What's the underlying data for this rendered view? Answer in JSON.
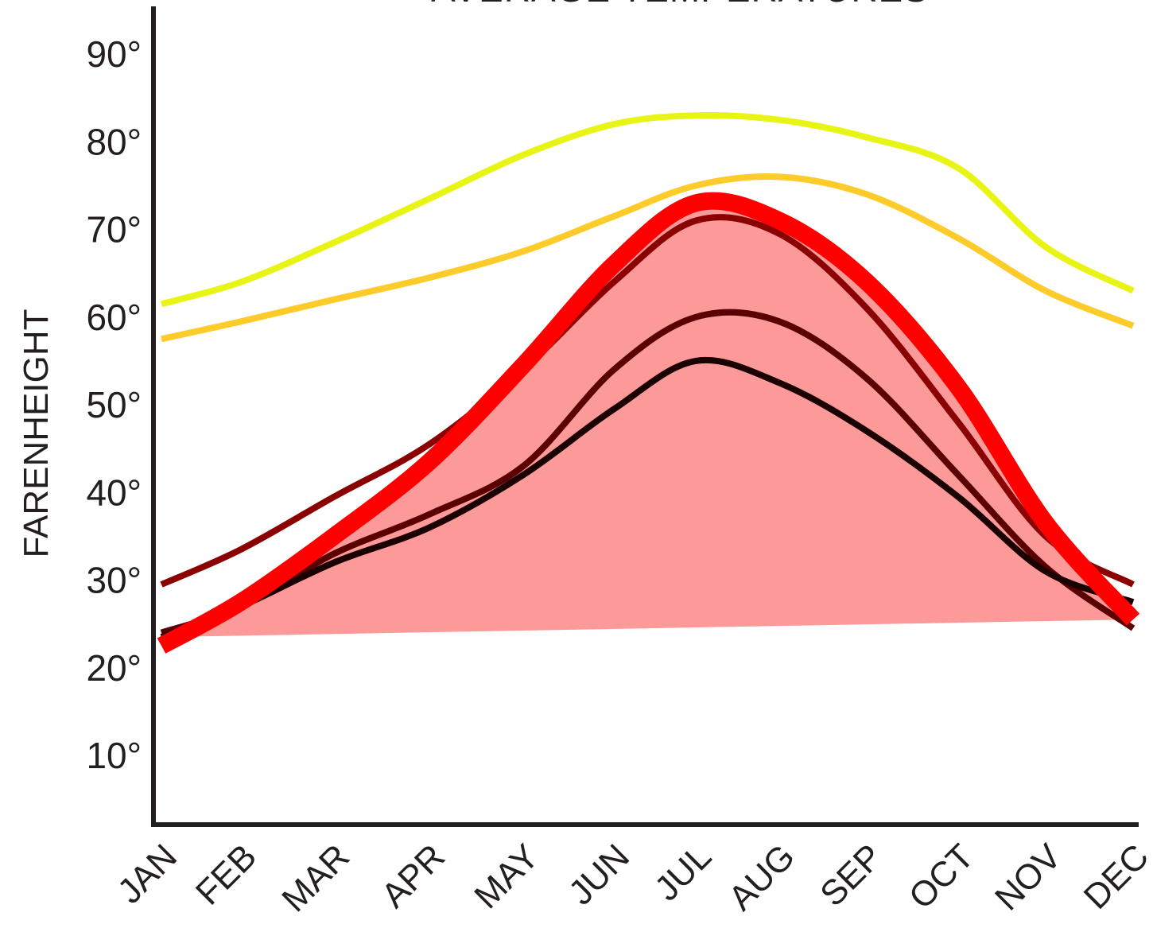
{
  "chart_data": {
    "type": "line",
    "title": "AVERAGE TEMPERATURES",
    "xlabel": "",
    "ylabel": "FARENHEIGHT",
    "categories": [
      "JAN",
      "FEB",
      "MAR",
      "APR",
      "MAY",
      "JUN",
      "JUL",
      "AUG",
      "SEP",
      "OCT",
      "NOV",
      "DEC"
    ],
    "y_ticks": [
      "10°",
      "20°",
      "30°",
      "40°",
      "50°",
      "60°",
      "70°",
      "80°",
      "90°"
    ],
    "y_tick_values": [
      10,
      20,
      30,
      40,
      50,
      60,
      70,
      80,
      90
    ],
    "ylim": [
      2,
      95
    ],
    "grid": false,
    "series": [
      {
        "color": "#e8f514",
        "width": 8,
        "values": [
          61.5,
          64,
          68.5,
          73.5,
          78.5,
          82,
          83,
          82.5,
          80.5,
          77,
          68,
          63
        ]
      },
      {
        "color": "#fdcb2a",
        "width": 8,
        "values": [
          57.5,
          59.5,
          62,
          64.5,
          67.5,
          71.5,
          75,
          76,
          74,
          69,
          63,
          59
        ]
      },
      {
        "color": "#8b0000",
        "width": 8,
        "values": [
          29.5,
          33.5,
          39.5,
          45.5,
          54,
          64,
          71,
          69.5,
          61,
          48,
          35,
          29.5
        ]
      },
      {
        "color": "#5a0000",
        "width": 8,
        "values": [
          24,
          27,
          33,
          37.5,
          43,
          54,
          60,
          59.5,
          53,
          42,
          31.5,
          24.5
        ]
      },
      {
        "color": "#1a0000",
        "width": 8,
        "values": [
          23.5,
          27,
          32,
          36,
          42,
          49.5,
          55,
          52.5,
          47,
          39.5,
          31,
          27.5
        ]
      },
      {
        "color": "#ff0000",
        "width": 22,
        "values": [
          22.5,
          27.5,
          35,
          43.5,
          54.5,
          66,
          73,
          71,
          64,
          52,
          36.5,
          25.5
        ]
      }
    ],
    "fill_area": {
      "color": "#fc9a9a",
      "baseline_start": 23.5,
      "baseline_end": 25.5
    }
  }
}
